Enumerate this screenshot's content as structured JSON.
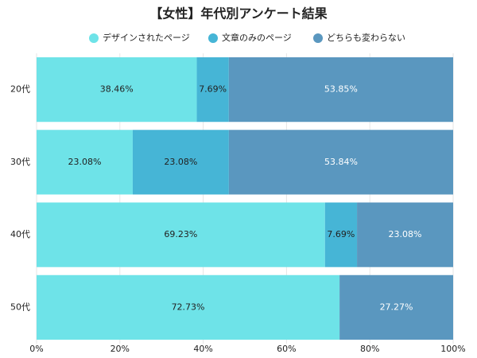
{
  "chart_data": {
    "type": "stacked-barh",
    "title": "【女性】年代別アンケート結果",
    "categories": [
      "20代",
      "30代",
      "40代",
      "50代"
    ],
    "series": [
      {
        "name": "デザインされたページ",
        "color": "#6ee3e8",
        "values": [
          38.46,
          23.08,
          69.23,
          72.73
        ],
        "value_labels": [
          "38.46%",
          "23.08%",
          "69.23%",
          "72.73%"
        ]
      },
      {
        "name": "文章のみのページ",
        "color": "#46b5d6",
        "values": [
          7.69,
          23.08,
          7.69,
          0
        ],
        "value_labels": [
          "7.69%",
          "23.08%",
          "7.69%",
          null
        ]
      },
      {
        "name": "どちらも変わらない",
        "color": "#5a97bf",
        "values": [
          53.85,
          53.84,
          23.08,
          27.27
        ],
        "value_labels": [
          "53.85%",
          "53.84%",
          "23.08%",
          "27.27%"
        ]
      }
    ],
    "xlim": [
      0,
      100
    ],
    "xticks": [
      {
        "value": 0,
        "label": "0%"
      },
      {
        "value": 20,
        "label": "20%"
      },
      {
        "value": 40,
        "label": "40%"
      },
      {
        "value": 60,
        "label": "60%"
      },
      {
        "value": 80,
        "label": "80%"
      },
      {
        "value": 100,
        "label": "100%"
      }
    ],
    "grid": true,
    "legend": "top"
  }
}
